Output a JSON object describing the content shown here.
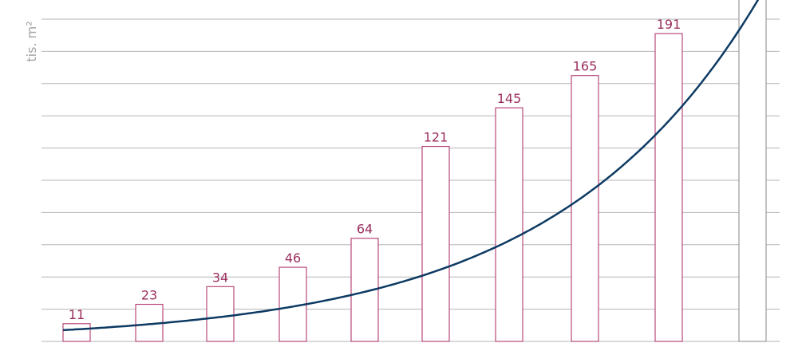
{
  "chart_data": {
    "type": "bar",
    "title": "",
    "xlabel": "",
    "ylabel": "tis. m²",
    "values": [
      11,
      23,
      34,
      46,
      64,
      121,
      145,
      165,
      191
    ],
    "ylim": [
      0,
      200
    ],
    "grid": true,
    "trend_line": true,
    "colors": {
      "bar_stroke": "#b8497a",
      "bar_fill": "#ffffff",
      "label": "#9b2f5e",
      "trend": "#0d3a63",
      "grid": "#b5b5b5",
      "axis_label": "#a3a3a3",
      "partial_bar": "#9a9a9a"
    }
  }
}
